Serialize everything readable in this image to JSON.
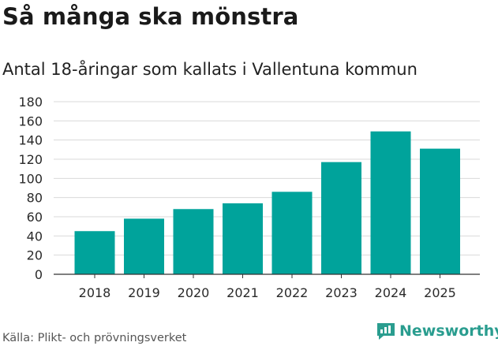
{
  "title": "Så många ska mönstra",
  "subtitle": "Antal 18-åringar som kallats i Vallentuna kommun",
  "source": "Källa: Plikt- och prövningsverket",
  "brand": {
    "name": "Newsworthy",
    "color": "#2a9d8f"
  },
  "colors": {
    "bar": "#00a39b",
    "grid": "#d9d9d9",
    "axis": "#333333"
  },
  "chart_data": {
    "type": "bar",
    "title": "Så många ska mönstra",
    "subtitle": "Antal 18-åringar som kallats i Vallentuna kommun",
    "xlabel": "",
    "ylabel": "",
    "categories": [
      "2018",
      "2019",
      "2020",
      "2021",
      "2022",
      "2023",
      "2024",
      "2025"
    ],
    "values": [
      45,
      58,
      68,
      74,
      86,
      117,
      149,
      131
    ],
    "ylim": [
      0,
      180
    ],
    "yticks": [
      0,
      20,
      40,
      60,
      80,
      100,
      120,
      140,
      160,
      180
    ],
    "grid": true,
    "legend": "none"
  }
}
